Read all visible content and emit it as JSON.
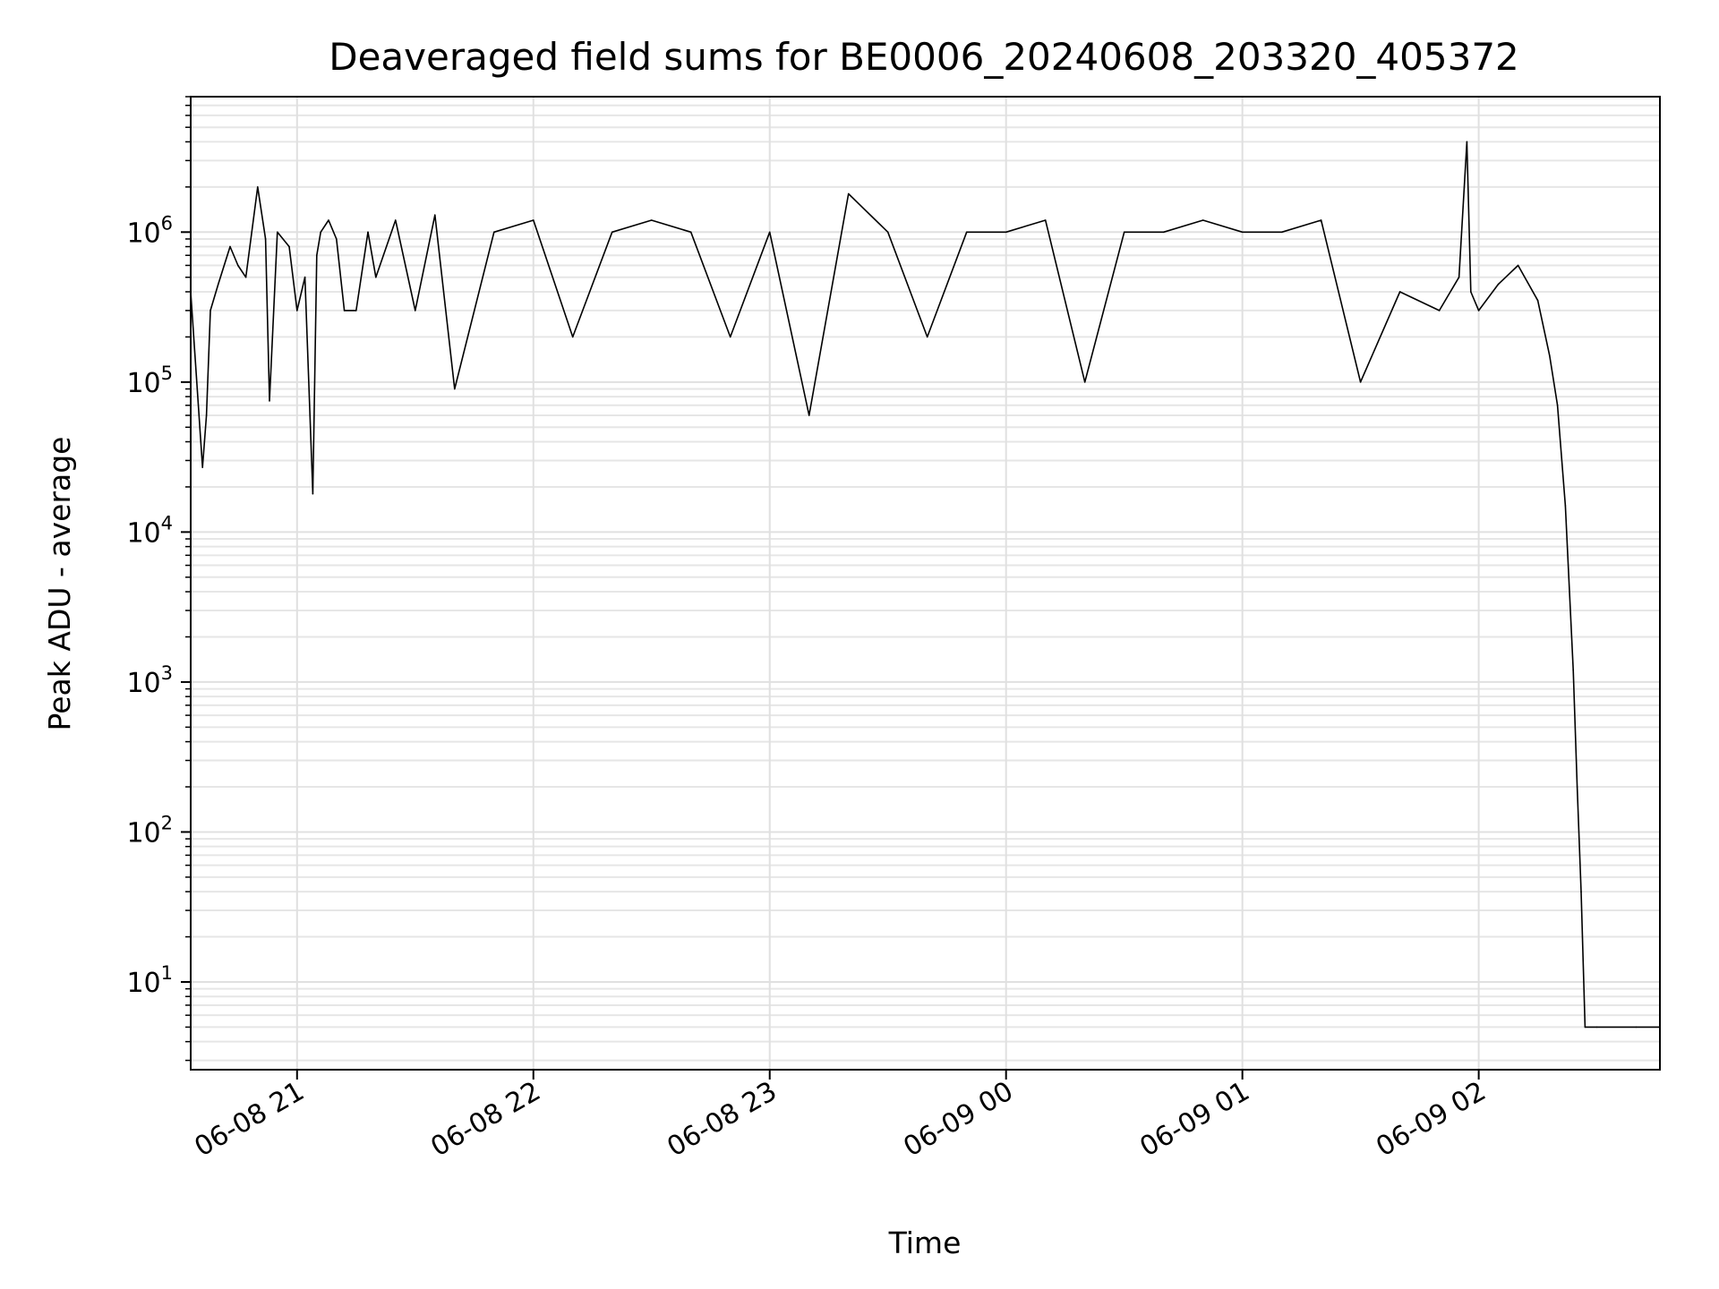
{
  "chart_data": {
    "type": "line",
    "title": "Deaveraged field sums for BE0006_20240608_203320_405372",
    "xlabel": "Time",
    "ylabel": "Peak ADU - average",
    "yscale": "log",
    "ylim": [
      2.6,
      8000000
    ],
    "xlim": [
      "2024-06-08 20:33",
      "2024-06-09 02:46"
    ],
    "x_ticks": [
      "06-08 21",
      "06-08 22",
      "06-08 23",
      "06-09 00",
      "06-09 01",
      "06-09 02"
    ],
    "y_ticks": [
      "10",
      "10",
      "10",
      "10",
      "10",
      "10"
    ],
    "y_tick_exponents": [
      "1",
      "2",
      "3",
      "4",
      "5",
      "6"
    ],
    "grid": true,
    "line_color": "#000000",
    "series": [
      {
        "x": [
          "2024-06-08 20:33",
          "2024-06-08 20:36",
          "2024-06-08 20:37",
          "2024-06-08 20:38",
          "2024-06-08 20:40",
          "2024-06-08 20:43",
          "2024-06-08 20:45",
          "2024-06-08 20:47",
          "2024-06-08 20:50",
          "2024-06-08 20:52",
          "2024-06-08 20:53",
          "2024-06-08 20:55",
          "2024-06-08 20:58",
          "2024-06-08 21:00",
          "2024-06-08 21:02",
          "2024-06-08 21:04",
          "2024-06-08 21:05",
          "2024-06-08 21:06",
          "2024-06-08 21:08",
          "2024-06-08 21:10",
          "2024-06-08 21:12",
          "2024-06-08 21:15",
          "2024-06-08 21:18",
          "2024-06-08 21:20",
          "2024-06-08 21:25",
          "2024-06-08 21:30",
          "2024-06-08 21:35",
          "2024-06-08 21:40",
          "2024-06-08 21:50",
          "2024-06-08 22:00",
          "2024-06-08 22:10",
          "2024-06-08 22:20",
          "2024-06-08 22:30",
          "2024-06-08 22:40",
          "2024-06-08 22:50",
          "2024-06-08 23:00",
          "2024-06-08 23:10",
          "2024-06-08 23:20",
          "2024-06-08 23:30",
          "2024-06-08 23:40",
          "2024-06-08 23:50",
          "2024-06-09 00:00",
          "2024-06-09 00:10",
          "2024-06-09 00:20",
          "2024-06-09 00:30",
          "2024-06-09 00:40",
          "2024-06-09 00:50",
          "2024-06-09 01:00",
          "2024-06-09 01:10",
          "2024-06-09 01:20",
          "2024-06-09 01:30",
          "2024-06-09 01:40",
          "2024-06-09 01:50",
          "2024-06-09 01:55",
          "2024-06-09 01:57",
          "2024-06-09 01:58",
          "2024-06-09 02:00",
          "2024-06-09 02:05",
          "2024-06-09 02:10",
          "2024-06-09 02:15",
          "2024-06-09 02:18",
          "2024-06-09 02:20",
          "2024-06-09 02:22",
          "2024-06-09 02:24",
          "2024-06-09 02:25",
          "2024-06-09 02:26",
          "2024-06-09 02:27",
          "2024-06-09 02:30",
          "2024-06-09 02:40",
          "2024-06-09 02:46"
        ],
        "y": [
          400000,
          27000,
          60000,
          300000,
          450000,
          800000,
          600000,
          500000,
          2000000,
          900000,
          75000,
          1000000,
          800000,
          300000,
          500000,
          18000,
          700000,
          1000000,
          1200000,
          900000,
          300000,
          300000,
          1000000,
          500000,
          1200000,
          300000,
          1300000,
          90000,
          1000000,
          1200000,
          200000,
          1000000,
          1200000,
          1000000,
          200000,
          1000000,
          60000,
          1800000,
          1000000,
          200000,
          1000000,
          1000000,
          1200000,
          100000,
          1000000,
          1000000,
          1200000,
          1000000,
          1000000,
          1200000,
          100000,
          400000,
          300000,
          500000,
          4000000,
          400000,
          300000,
          450000,
          600000,
          350000,
          150000,
          70000,
          15000,
          1200,
          200,
          40,
          5,
          5,
          5,
          5
        ]
      }
    ]
  }
}
